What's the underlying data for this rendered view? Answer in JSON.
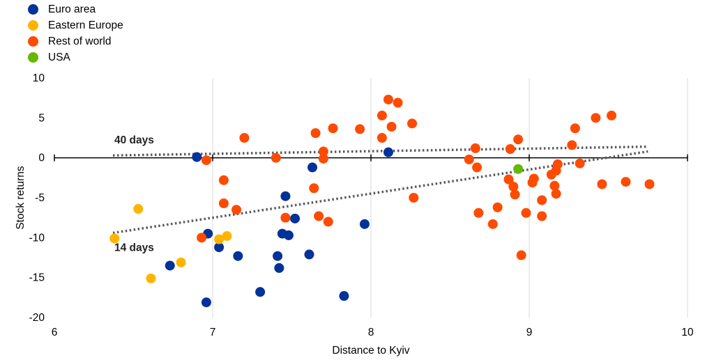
{
  "chart_data": {
    "type": "scatter",
    "xlabel": "Distance to Kyiv",
    "ylabel": "Stock returns",
    "xlim": [
      6,
      10
    ],
    "ylim": [
      -20,
      10
    ],
    "xticks": [
      6,
      7,
      8,
      9,
      10
    ],
    "yticks": [
      -20,
      -15,
      -10,
      -5,
      0,
      5,
      10
    ],
    "legend_position": "top-left",
    "series": [
      {
        "name": "Euro area",
        "color": "#003299",
        "points": [
          [
            6.9,
            0.1
          ],
          [
            6.97,
            -9.5
          ],
          [
            7.04,
            -11.2
          ],
          [
            6.96,
            -18.1
          ],
          [
            6.73,
            -13.5
          ],
          [
            7.16,
            -12.3
          ],
          [
            7.3,
            -16.8
          ],
          [
            7.41,
            -12.3
          ],
          [
            7.42,
            -13.8
          ],
          [
            7.44,
            -9.5
          ],
          [
            7.46,
            -4.8
          ],
          [
            7.48,
            -9.7
          ],
          [
            7.52,
            -7.6
          ],
          [
            7.61,
            -12.1
          ],
          [
            7.63,
            -1.2
          ],
          [
            7.83,
            -17.3
          ],
          [
            7.96,
            -8.3
          ],
          [
            8.11,
            0.7
          ]
        ]
      },
      {
        "name": "Eastern Europe",
        "color": "#FFB400",
        "points": [
          [
            6.38,
            -10.1
          ],
          [
            6.53,
            -6.4
          ],
          [
            6.61,
            -15.1
          ],
          [
            6.8,
            -13.1
          ],
          [
            7.04,
            -10.2
          ],
          [
            7.09,
            -9.8
          ]
        ]
      },
      {
        "name": "Rest of world",
        "color": "#FF4B00",
        "points": [
          [
            6.96,
            -0.3
          ],
          [
            6.93,
            -10.0
          ],
          [
            7.07,
            -2.8
          ],
          [
            7.07,
            -5.7
          ],
          [
            7.15,
            -6.5
          ],
          [
            7.2,
            2.5
          ],
          [
            7.4,
            0.0
          ],
          [
            7.46,
            -7.5
          ],
          [
            7.64,
            -3.8
          ],
          [
            7.65,
            3.1
          ],
          [
            7.67,
            -7.3
          ],
          [
            7.7,
            0.8
          ],
          [
            7.7,
            -0.1
          ],
          [
            7.73,
            -8.0
          ],
          [
            7.76,
            3.7
          ],
          [
            7.93,
            3.6
          ],
          [
            8.07,
            2.5
          ],
          [
            8.07,
            5.3
          ],
          [
            8.11,
            7.3
          ],
          [
            8.13,
            3.9
          ],
          [
            8.17,
            6.9
          ],
          [
            8.26,
            4.3
          ],
          [
            8.27,
            -5.0
          ],
          [
            8.62,
            -0.2
          ],
          [
            8.66,
            1.2
          ],
          [
            8.67,
            -1.2
          ],
          [
            8.68,
            -6.9
          ],
          [
            8.77,
            -8.3
          ],
          [
            8.8,
            -6.2
          ],
          [
            8.87,
            -2.7
          ],
          [
            8.88,
            1.1
          ],
          [
            8.9,
            -3.6
          ],
          [
            8.91,
            -4.6
          ],
          [
            8.93,
            2.3
          ],
          [
            8.95,
            -12.2
          ],
          [
            8.98,
            -6.9
          ],
          [
            9.02,
            -3.1
          ],
          [
            9.03,
            -2.6
          ],
          [
            9.08,
            -5.3
          ],
          [
            9.08,
            -7.3
          ],
          [
            9.14,
            -2.1
          ],
          [
            9.16,
            -3.5
          ],
          [
            9.17,
            -4.5
          ],
          [
            9.17,
            -1.6
          ],
          [
            9.18,
            -0.8
          ],
          [
            9.27,
            1.6
          ],
          [
            9.29,
            3.7
          ],
          [
            9.32,
            -0.7
          ],
          [
            9.42,
            5.0
          ],
          [
            9.46,
            -3.3
          ],
          [
            9.52,
            5.3
          ],
          [
            9.61,
            -3.0
          ],
          [
            9.76,
            -3.3
          ]
        ]
      },
      {
        "name": "USA",
        "color": "#65B800",
        "points": [
          [
            8.93,
            -1.4
          ]
        ]
      }
    ],
    "trendlines": [
      {
        "label": "40 days",
        "from": [
          6.37,
          0.3
        ],
        "to": [
          9.75,
          1.4
        ]
      },
      {
        "label": "14 days",
        "from": [
          6.37,
          -9.4
        ],
        "to": [
          9.75,
          0.8
        ]
      }
    ]
  }
}
